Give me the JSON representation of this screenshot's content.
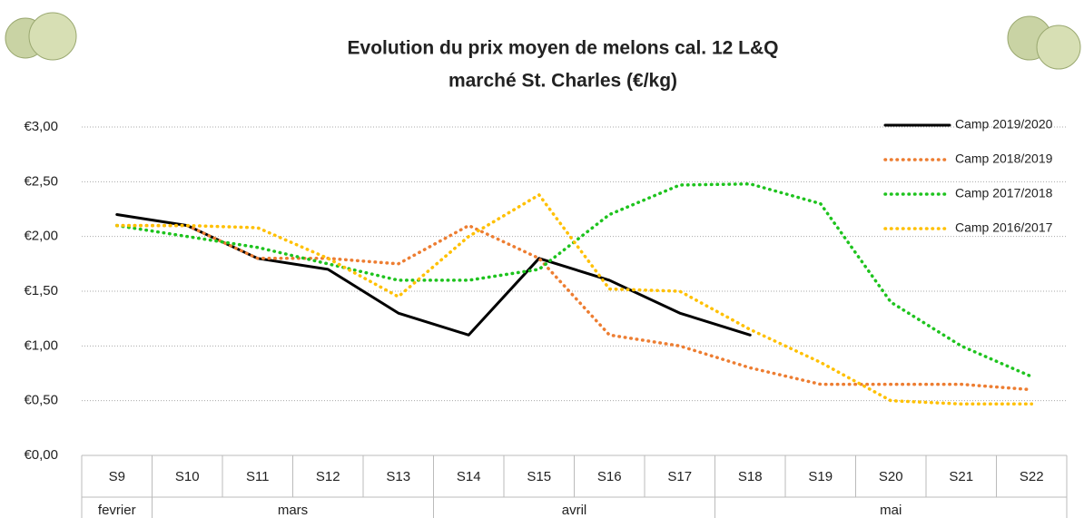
{
  "chart_data": {
    "type": "line",
    "title": [
      "Evolution du prix moyen de melons cal. 12 L&Q",
      "marché St. Charles (€/kg)"
    ],
    "categories": [
      "S9",
      "S10",
      "S11",
      "S12",
      "S13",
      "S14",
      "S15",
      "S16",
      "S17",
      "S18",
      "S19",
      "S20",
      "S21",
      "S22"
    ],
    "months": [
      "fevrier",
      "mars",
      "mars",
      "mars",
      "mars",
      "avril",
      "avril",
      "avril",
      "avril",
      "mai",
      "mai",
      "mai",
      "mai",
      "mai"
    ],
    "series": [
      {
        "name": "Camp 2019/2020",
        "color": "#000000",
        "style": "solid",
        "values": [
          2.2,
          2.1,
          1.8,
          1.7,
          1.3,
          1.1,
          1.8,
          1.6,
          1.3,
          1.1,
          null,
          null,
          null,
          null
        ]
      },
      {
        "name": "Camp 2018/2019",
        "color": "#ED7D31",
        "style": "dotted",
        "values": [
          2.1,
          2.1,
          1.8,
          1.8,
          1.75,
          2.1,
          1.8,
          1.1,
          1.0,
          0.8,
          0.65,
          0.65,
          0.65,
          0.6
        ]
      },
      {
        "name": "Camp 2017/2018",
        "color": "#1EC31E",
        "style": "dotted",
        "values": [
          2.1,
          2.0,
          1.9,
          1.75,
          1.6,
          1.6,
          1.7,
          2.2,
          2.47,
          2.48,
          2.3,
          1.4,
          1.0,
          0.72
        ]
      },
      {
        "name": "Camp 2016/2017",
        "color": "#FFC000",
        "style": "dotted",
        "values": [
          2.1,
          2.1,
          2.08,
          1.8,
          1.45,
          2.0,
          2.38,
          1.52,
          1.5,
          1.15,
          0.85,
          0.5,
          0.47,
          0.47
        ]
      }
    ],
    "ylim": [
      0,
      3
    ],
    "yticks": [
      {
        "value": 0,
        "label": "€0,00"
      },
      {
        "value": 0.5,
        "label": "€0,50"
      },
      {
        "value": 1,
        "label": "€1,00"
      },
      {
        "value": 1.5,
        "label": "€1,50"
      },
      {
        "value": 2,
        "label": "€2,00"
      },
      {
        "value": 2.5,
        "label": "€2,50"
      },
      {
        "value": 3,
        "label": "€3,00"
      }
    ],
    "grid": true,
    "legend": "top-right"
  }
}
